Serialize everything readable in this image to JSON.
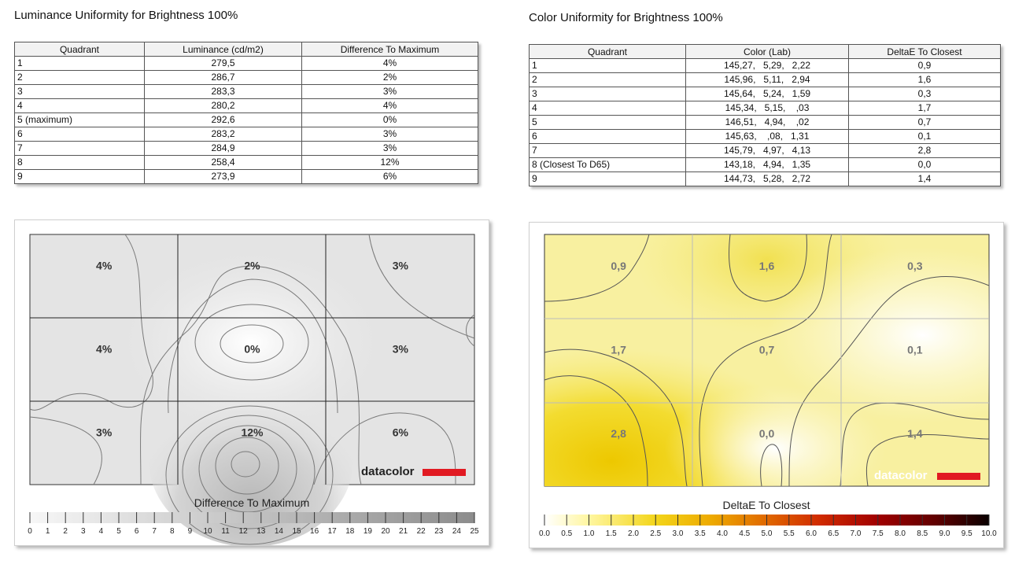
{
  "left": {
    "title": "Luminance Uniformity for Brightness 100%",
    "headers": [
      "Quadrant",
      "Luminance (cd/m2)",
      "Difference To Maximum"
    ],
    "rows": [
      [
        "1",
        "279,5",
        "4%"
      ],
      [
        "2",
        "286,7",
        "2%"
      ],
      [
        "3",
        "283,3",
        "3%"
      ],
      [
        "4",
        "280,2",
        "4%"
      ],
      [
        "5 (maximum)",
        "292,6",
        "0%"
      ],
      [
        "6",
        "283,2",
        "3%"
      ],
      [
        "7",
        "284,9",
        "3%"
      ],
      [
        "8",
        "258,4",
        "12%"
      ],
      [
        "9",
        "273,9",
        "6%"
      ]
    ]
  },
  "right": {
    "title": "Color Uniformity for Brightness 100%",
    "headers": [
      "Quadrant",
      "Color (Lab)",
      "DeltaE To Closest"
    ],
    "rows": [
      [
        "1",
        "145,27,   5,29,   2,22",
        "0,9"
      ],
      [
        "2",
        "145,96,   5,11,   2,94",
        "1,6"
      ],
      [
        "3",
        "145,64,   5,24,   1,59",
        "0,3"
      ],
      [
        "4",
        "145,34,   5,15,    ,03",
        "1,7"
      ],
      [
        "5",
        "146,51,   4,94,    ,02",
        "0,7"
      ],
      [
        "6",
        "145,63,    ,08,   1,31",
        "0,1"
      ],
      [
        "7",
        "145,79,   4,97,   4,13",
        "2,8"
      ],
      [
        "8 (Closest To D65)",
        "143,18,   4,94,   1,35",
        "0,0"
      ],
      [
        "9",
        "144,73,   5,28,   2,72",
        "1,4"
      ]
    ]
  },
  "chart_data": [
    {
      "type": "heatmap",
      "title": "Difference To Maximum",
      "rows": 3,
      "cols": 3,
      "labels": [
        [
          "4%",
          "2%",
          "3%"
        ],
        [
          "4%",
          "0%",
          "3%"
        ],
        [
          "3%",
          "12%",
          "6%"
        ]
      ],
      "values": [
        [
          4,
          2,
          3
        ],
        [
          4,
          0,
          3
        ],
        [
          3,
          12,
          6
        ]
      ],
      "scale_ticks": [
        "0",
        "1",
        "2",
        "3",
        "4",
        "5",
        "6",
        "7",
        "8",
        "9",
        "10",
        "11",
        "12",
        "13",
        "14",
        "15",
        "16",
        "17",
        "18",
        "19",
        "20",
        "21",
        "22",
        "23",
        "24",
        "25"
      ],
      "scale_range": [
        0,
        25
      ],
      "scale_colors": [
        "#f2f2f2",
        "#8c8c8c"
      ],
      "brand": "datacolor",
      "brand_color": "#e11a22"
    },
    {
      "type": "heatmap",
      "title": "DeltaE To Closest",
      "rows": 3,
      "cols": 3,
      "labels": [
        [
          "0,9",
          "1,6",
          "0,3"
        ],
        [
          "1,7",
          "0,7",
          "0,1"
        ],
        [
          "2,8",
          "0,0",
          "1,4"
        ]
      ],
      "values": [
        [
          0.9,
          1.6,
          0.3
        ],
        [
          1.7,
          0.7,
          0.1
        ],
        [
          2.8,
          0.0,
          1.4
        ]
      ],
      "scale_ticks": [
        "0.0",
        "0.5",
        "1.0",
        "1.5",
        "2.0",
        "2.5",
        "3.0",
        "3.5",
        "4.0",
        "4.5",
        "5.0",
        "5.5",
        "6.0",
        "6.5",
        "7.0",
        "7.5",
        "8.0",
        "8.5",
        "9.0",
        "9.5",
        "10.0"
      ],
      "scale_range": [
        0,
        10
      ],
      "scale_colors": [
        "#ffffff",
        "#fff9b0",
        "#f5e642",
        "#e8c000",
        "#e07a00",
        "#d02800",
        "#8a0000",
        "#200000"
      ],
      "brand": "datacolor",
      "brand_color": "#e11a22"
    }
  ]
}
